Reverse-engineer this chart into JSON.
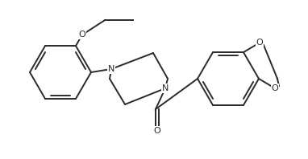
{
  "bg_color": "#ffffff",
  "line_color": "#2a2a2a",
  "line_width": 1.4,
  "font_size": 8.0,
  "figsize": [
    3.82,
    1.98
  ],
  "dpi": 100,
  "xlim": [
    0,
    382
  ],
  "ylim": [
    0,
    198
  ]
}
